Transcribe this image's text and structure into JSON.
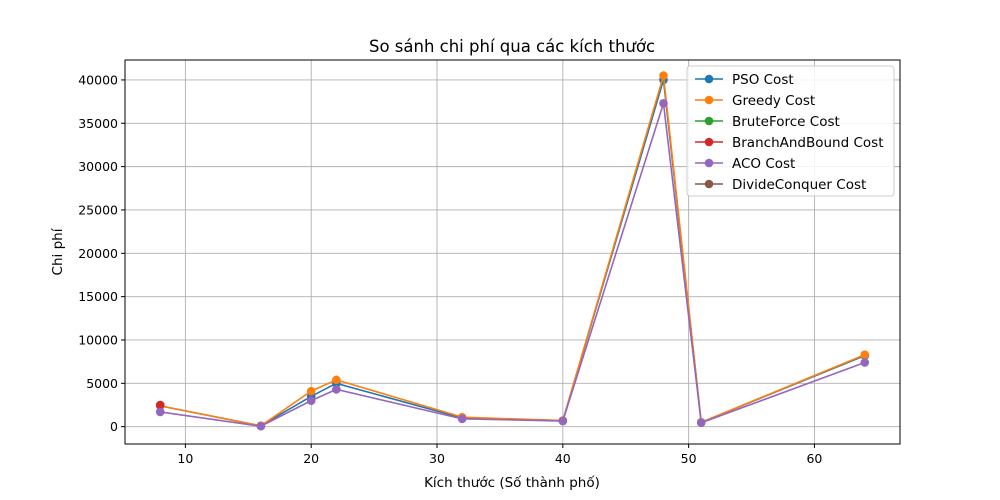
{
  "chart_data": {
    "type": "line",
    "title": "So sánh chi phí qua các kích thước",
    "xlabel": "Kích thước (Số thành phố)",
    "ylabel": "Chi phí",
    "xlim": [
      5.2,
      66.8
    ],
    "ylim": [
      -2000,
      42300
    ],
    "xticks": [
      10,
      20,
      30,
      40,
      50,
      60
    ],
    "yticks": [
      0,
      5000,
      10000,
      15000,
      20000,
      25000,
      30000,
      35000,
      40000
    ],
    "grid": true,
    "legend_position": "top-right",
    "x": [
      8,
      16,
      20,
      22,
      32,
      40,
      48,
      51,
      64
    ],
    "series": [
      {
        "name": "PSO Cost",
        "color": "#1f77b4",
        "x": [
          8,
          16,
          20,
          22,
          32,
          40,
          48,
          51,
          64
        ],
        "values": [
          2400,
          100,
          3500,
          5000,
          1000,
          700,
          40000,
          500,
          8200
        ]
      },
      {
        "name": "Greedy Cost",
        "color": "#ff7f0e",
        "x": [
          8,
          16,
          20,
          22,
          32,
          40,
          48,
          51,
          64
        ],
        "values": [
          2400,
          100,
          4100,
          5400,
          1100,
          700,
          40500,
          500,
          8300
        ]
      },
      {
        "name": "BruteForce Cost",
        "color": "#2ca02c",
        "x": [
          8
        ],
        "values": [
          2500
        ]
      },
      {
        "name": "BranchAndBound Cost",
        "color": "#d62728",
        "x": [
          8
        ],
        "values": [
          2500
        ]
      },
      {
        "name": "ACO Cost",
        "color": "#9467bd",
        "x": [
          8,
          16,
          20,
          22,
          32,
          40,
          48,
          51,
          64
        ],
        "values": [
          1700,
          50,
          3000,
          4300,
          900,
          650,
          37300,
          450,
          7400
        ]
      },
      {
        "name": "DivideConquer Cost",
        "color": "#8c564b",
        "x": [],
        "values": []
      }
    ]
  }
}
